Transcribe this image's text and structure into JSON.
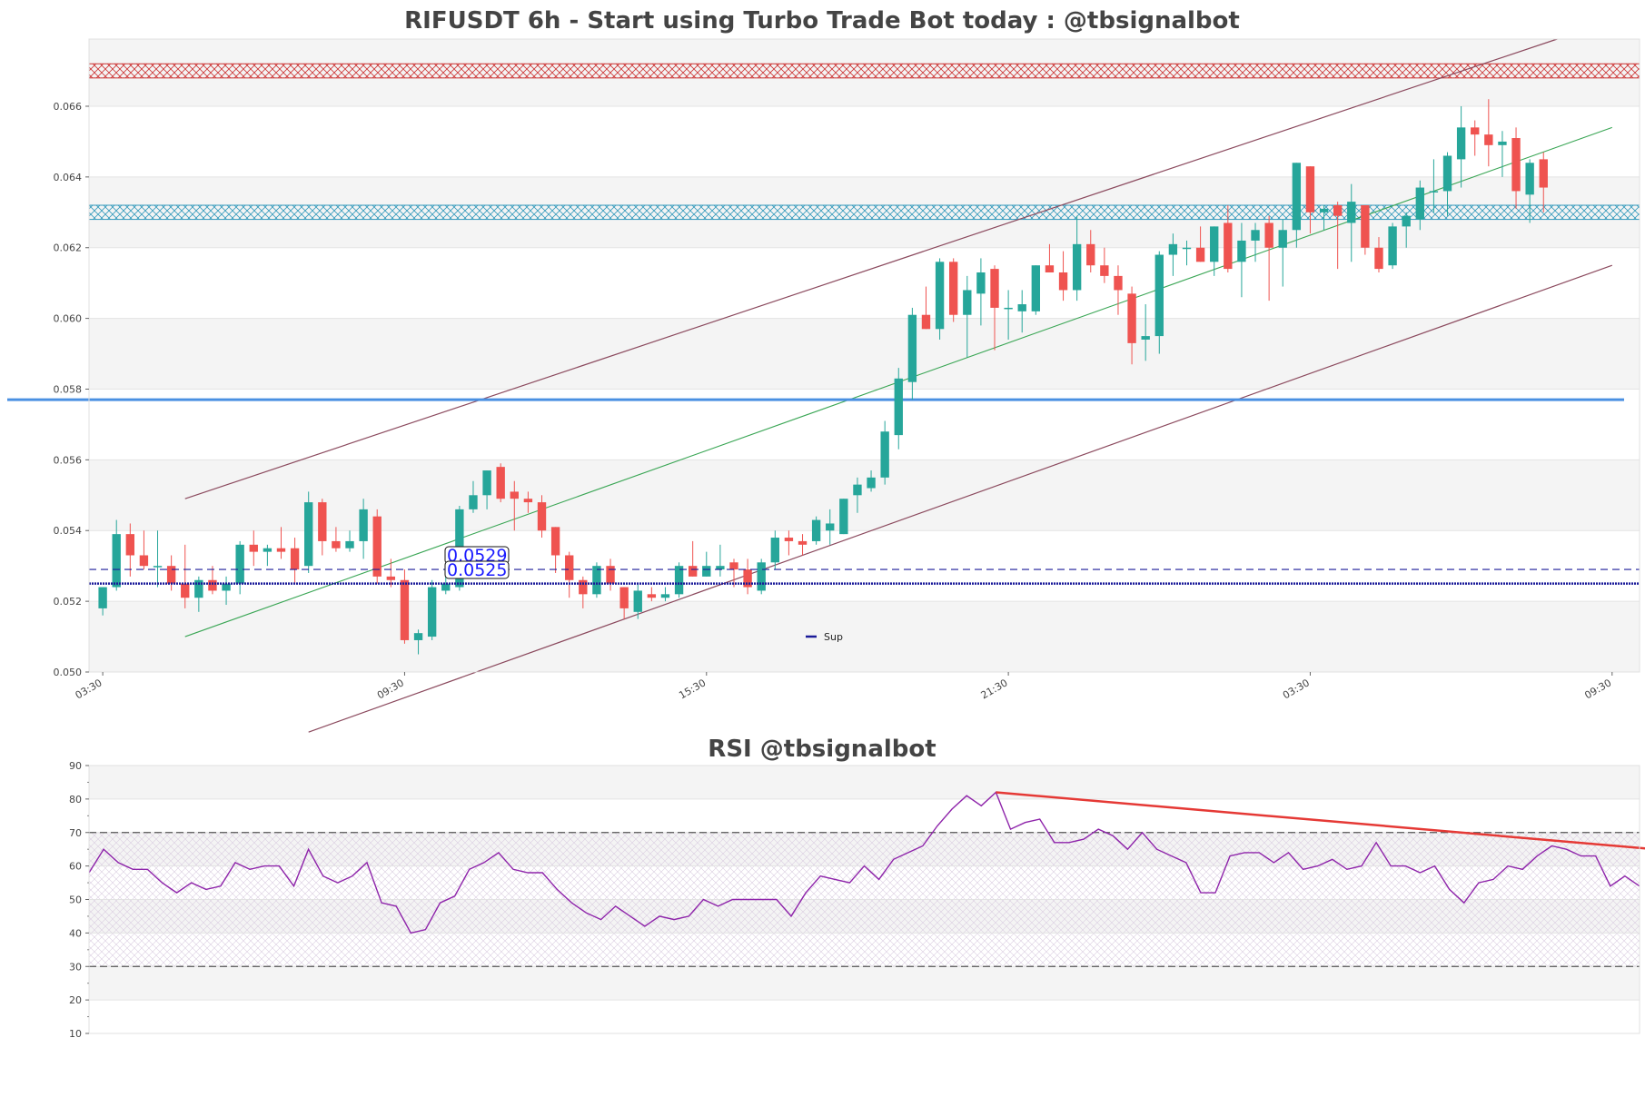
{
  "price_chart": {
    "title": "RIFUSDT 6h - Start using Turbo Trade Bot today : @tbsignalbot",
    "legend_label": "Sup",
    "support_labels": [
      "0.0529",
      "0.0525"
    ]
  },
  "rsi_chart": {
    "title": "RSI @tbsignalbot"
  },
  "colors": {
    "up": "#26a69a",
    "down": "#ef5350",
    "resistance_zone": "#cc3333",
    "support_zone": "#3399bb",
    "channel": "#8b4a5e",
    "midline": "#3aa655",
    "hline": "#4a90e2",
    "support_line": "#1a1a99",
    "rsi_line": "#8e24aa",
    "rsi_trend": "#e53935"
  },
  "chart_data": [
    {
      "type": "candlestick",
      "title": "RIFUSDT 6h - Start using Turbo Trade Bot today : @tbsignalbot",
      "ylim": [
        0.05,
        0.0679
      ],
      "yticks": [
        0.05,
        0.052,
        0.054,
        0.056,
        0.058,
        0.06,
        0.062,
        0.064,
        0.066
      ],
      "ytick_labels": [
        "0.050",
        "0.052",
        "0.054",
        "0.056",
        "0.058",
        "0.060",
        "0.062",
        "0.064",
        "0.066"
      ],
      "xtick_positions": [
        0,
        22,
        44,
        66,
        88,
        110
      ],
      "xtick_labels": [
        "03:30",
        "09:30",
        "15:30",
        "21:30",
        "03:30",
        "09:30"
      ],
      "xlim": [
        -1,
        112
      ],
      "candles": [
        [
          0.0518,
          0.0524,
          0.0516,
          0.0524
        ],
        [
          0.0524,
          0.0543,
          0.0523,
          0.0539
        ],
        [
          0.0539,
          0.0542,
          0.0527,
          0.0533
        ],
        [
          0.0533,
          0.054,
          0.0529,
          0.053
        ],
        [
          0.053,
          0.054,
          0.0524,
          0.053
        ],
        [
          0.053,
          0.0533,
          0.0523,
          0.0525
        ],
        [
          0.0525,
          0.0536,
          0.0518,
          0.0521
        ],
        [
          0.0521,
          0.0527,
          0.0517,
          0.0526
        ],
        [
          0.0526,
          0.053,
          0.0522,
          0.0523
        ],
        [
          0.0523,
          0.0527,
          0.0519,
          0.0525
        ],
        [
          0.0525,
          0.0537,
          0.0522,
          0.0536
        ],
        [
          0.0536,
          0.054,
          0.053,
          0.0534
        ],
        [
          0.0534,
          0.0536,
          0.053,
          0.0535
        ],
        [
          0.0535,
          0.0541,
          0.0532,
          0.0534
        ],
        [
          0.0535,
          0.0538,
          0.0525,
          0.0529
        ],
        [
          0.053,
          0.0551,
          0.0528,
          0.0548
        ],
        [
          0.0548,
          0.0549,
          0.0533,
          0.0537
        ],
        [
          0.0537,
          0.0541,
          0.0534,
          0.0535
        ],
        [
          0.0535,
          0.054,
          0.0534,
          0.0537
        ],
        [
          0.0537,
          0.0549,
          0.0532,
          0.0546
        ],
        [
          0.0544,
          0.0546,
          0.0525,
          0.0527
        ],
        [
          0.0527,
          0.0532,
          0.0524,
          0.0526
        ],
        [
          0.0526,
          0.0529,
          0.0508,
          0.0509
        ],
        [
          0.0509,
          0.0512,
          0.0505,
          0.0511
        ],
        [
          0.051,
          0.0526,
          0.0509,
          0.0524
        ],
        [
          0.0523,
          0.0529,
          0.0522,
          0.0525
        ],
        [
          0.0524,
          0.0547,
          0.0523,
          0.0546
        ],
        [
          0.0546,
          0.0554,
          0.0545,
          0.055
        ],
        [
          0.055,
          0.0557,
          0.0546,
          0.0557
        ],
        [
          0.0558,
          0.0559,
          0.0548,
          0.0549
        ],
        [
          0.0551,
          0.0554,
          0.054,
          0.0549
        ],
        [
          0.0549,
          0.0551,
          0.0545,
          0.0548
        ],
        [
          0.0548,
          0.055,
          0.0538,
          0.054
        ],
        [
          0.0541,
          0.0541,
          0.0528,
          0.0533
        ],
        [
          0.0533,
          0.0534,
          0.0521,
          0.0526
        ],
        [
          0.0526,
          0.0527,
          0.0518,
          0.0522
        ],
        [
          0.0522,
          0.0531,
          0.0521,
          0.053
        ],
        [
          0.053,
          0.0532,
          0.0523,
          0.0525
        ],
        [
          0.0524,
          0.0524,
          0.0515,
          0.0518
        ],
        [
          0.0517,
          0.0525,
          0.0515,
          0.0523
        ],
        [
          0.0522,
          0.0524,
          0.052,
          0.0521
        ],
        [
          0.0521,
          0.0524,
          0.052,
          0.0522
        ],
        [
          0.0522,
          0.0531,
          0.0521,
          0.053
        ],
        [
          0.053,
          0.0537,
          0.0527,
          0.0527
        ],
        [
          0.0527,
          0.0534,
          0.0527,
          0.053
        ],
        [
          0.0529,
          0.0536,
          0.0527,
          0.053
        ],
        [
          0.0531,
          0.0532,
          0.0524,
          0.0529
        ],
        [
          0.0529,
          0.0532,
          0.0522,
          0.0524
        ],
        [
          0.0523,
          0.0532,
          0.0522,
          0.0531
        ],
        [
          0.0531,
          0.054,
          0.0529,
          0.0538
        ],
        [
          0.0538,
          0.054,
          0.0533,
          0.0537
        ],
        [
          0.0537,
          0.0539,
          0.0533,
          0.0536
        ],
        [
          0.0537,
          0.0544,
          0.0536,
          0.0543
        ],
        [
          0.054,
          0.0546,
          0.0536,
          0.0542
        ],
        [
          0.0539,
          0.0549,
          0.0539,
          0.0549
        ],
        [
          0.055,
          0.0555,
          0.0545,
          0.0553
        ],
        [
          0.0552,
          0.0557,
          0.0551,
          0.0555
        ],
        [
          0.0555,
          0.0571,
          0.0553,
          0.0568
        ],
        [
          0.0567,
          0.0586,
          0.0563,
          0.0583
        ],
        [
          0.0582,
          0.0603,
          0.0577,
          0.0601
        ],
        [
          0.0601,
          0.0609,
          0.0597,
          0.0597
        ],
        [
          0.0597,
          0.0617,
          0.0594,
          0.0616
        ],
        [
          0.0616,
          0.0617,
          0.0599,
          0.0601
        ],
        [
          0.0601,
          0.0612,
          0.0589,
          0.0608
        ],
        [
          0.0607,
          0.0617,
          0.0598,
          0.0613
        ],
        [
          0.0614,
          0.0615,
          0.0591,
          0.0603
        ],
        [
          0.0603,
          0.0608,
          0.0594,
          0.0603
        ],
        [
          0.0602,
          0.0608,
          0.0596,
          0.0604
        ],
        [
          0.0602,
          0.0615,
          0.0601,
          0.0615
        ],
        [
          0.0615,
          0.0621,
          0.0613,
          0.0613
        ],
        [
          0.0613,
          0.0619,
          0.0605,
          0.0608
        ],
        [
          0.0608,
          0.0629,
          0.0605,
          0.0621
        ],
        [
          0.0621,
          0.0625,
          0.0613,
          0.0615
        ],
        [
          0.0615,
          0.062,
          0.061,
          0.0612
        ],
        [
          0.0612,
          0.0615,
          0.0601,
          0.0608
        ],
        [
          0.0607,
          0.0609,
          0.0587,
          0.0593
        ],
        [
          0.0594,
          0.0604,
          0.0588,
          0.0595
        ],
        [
          0.0595,
          0.0619,
          0.059,
          0.0618
        ],
        [
          0.0618,
          0.0624,
          0.0612,
          0.0621
        ],
        [
          0.062,
          0.0622,
          0.0615,
          0.062
        ],
        [
          0.062,
          0.0626,
          0.0616,
          0.0616
        ],
        [
          0.0616,
          0.0626,
          0.0612,
          0.0626
        ],
        [
          0.0627,
          0.0632,
          0.0613,
          0.0614
        ],
        [
          0.0616,
          0.0627,
          0.0606,
          0.0622
        ],
        [
          0.0622,
          0.0627,
          0.0616,
          0.0625
        ],
        [
          0.0627,
          0.0629,
          0.0605,
          0.062
        ],
        [
          0.062,
          0.0628,
          0.0609,
          0.0625
        ],
        [
          0.0625,
          0.0644,
          0.062,
          0.0644
        ],
        [
          0.0643,
          0.0643,
          0.0624,
          0.063
        ],
        [
          0.063,
          0.0632,
          0.0625,
          0.0631
        ],
        [
          0.0632,
          0.0633,
          0.0614,
          0.0629
        ],
        [
          0.0627,
          0.0638,
          0.0616,
          0.0633
        ],
        [
          0.0632,
          0.0632,
          0.0618,
          0.062
        ],
        [
          0.062,
          0.0623,
          0.0613,
          0.0614
        ],
        [
          0.0615,
          0.0627,
          0.0614,
          0.0626
        ],
        [
          0.0626,
          0.063,
          0.062,
          0.0629
        ],
        [
          0.0628,
          0.0639,
          0.0625,
          0.0637
        ],
        [
          0.0636,
          0.0645,
          0.063,
          0.0636
        ],
        [
          0.0636,
          0.0647,
          0.0629,
          0.0646
        ],
        [
          0.0645,
          0.066,
          0.0637,
          0.0654
        ],
        [
          0.0654,
          0.0656,
          0.0646,
          0.0652
        ],
        [
          0.0652,
          0.0662,
          0.0643,
          0.0649
        ],
        [
          0.0649,
          0.0653,
          0.064,
          0.065
        ],
        [
          0.0651,
          0.0654,
          0.0631,
          0.0636
        ],
        [
          0.0635,
          0.0645,
          0.0627,
          0.0644
        ],
        [
          0.0645,
          0.0647,
          0.063,
          0.0637
        ]
      ],
      "horizontal_line": 0.0577,
      "support_levels": [
        0.0529,
        0.0525
      ],
      "resistance_zone": [
        0.0668,
        0.0672
      ],
      "support_zone": [
        0.0628,
        0.0632
      ],
      "channel_upper": [
        [
          6,
          0.0549
        ],
        [
          106,
          0.0679
        ]
      ],
      "channel_mid": [
        [
          6,
          0.051
        ],
        [
          110,
          0.0654
        ]
      ],
      "channel_lower": [
        [
          15,
          0.0483
        ],
        [
          110,
          0.0615
        ]
      ]
    },
    {
      "type": "line",
      "title": "RSI @tbsignalbot",
      "ylim": [
        10,
        90
      ],
      "yticks": [
        10,
        20,
        30,
        40,
        50,
        60,
        70,
        80,
        90
      ],
      "ytick_labels": [
        "10",
        "20",
        "30",
        "40",
        "50",
        "60",
        "70",
        "80",
        "90"
      ],
      "overbought": 70,
      "oversold": 30,
      "values": [
        58,
        65,
        61,
        59,
        59,
        55,
        52,
        55,
        53,
        54,
        61,
        59,
        60,
        60,
        54,
        65,
        57,
        55,
        57,
        61,
        49,
        48,
        40,
        41,
        49,
        51,
        59,
        61,
        64,
        59,
        58,
        58,
        53,
        49,
        46,
        44,
        48,
        45,
        42,
        45,
        44,
        45,
        50,
        48,
        50,
        50,
        50,
        50,
        45,
        52,
        57,
        56,
        55,
        60,
        56,
        62,
        64,
        66,
        72,
        77,
        81,
        78,
        82,
        71,
        73,
        74,
        67,
        67,
        68,
        71,
        69,
        65,
        70,
        65,
        63,
        61,
        52,
        52,
        63,
        64,
        64,
        61,
        64,
        59,
        60,
        62,
        59,
        60,
        67,
        60,
        60,
        58,
        60,
        53,
        49,
        55,
        56,
        60,
        59,
        63,
        66,
        65,
        63,
        63,
        54,
        57,
        54
      ],
      "trendline": [
        [
          62,
          82
        ],
        [
          111,
          63.5
        ]
      ]
    }
  ]
}
